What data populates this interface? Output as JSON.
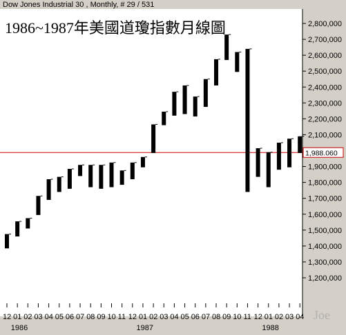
{
  "header": {
    "text": "Dow Jones Industrial 30 , Monthly, # 29 / 531"
  },
  "signature": "Joe",
  "colors": {
    "plot_bg": "#ffffff",
    "frame_bg": "#d4d0c8",
    "bar": "#000000",
    "current_line": "#cc0000"
  },
  "chart_data": {
    "type": "candlestick",
    "title": "1986~1987年美國道瓊指數月線圖",
    "y_ticks": [
      "1,200,000",
      "1,300,000",
      "1,400,000",
      "1,500,000",
      "1,600,000",
      "1,700,000",
      "1,800,000",
      "1,900,000",
      "2,000,000",
      "2,100,000",
      "2,200,000",
      "2,300,000",
      "2,400,000",
      "2,500,000",
      "2,600,000",
      "2,700,000",
      "2,800,000"
    ],
    "ylim": [
      1160,
      2850
    ],
    "current_value": "1,988.060",
    "year_labels": [
      {
        "label": "1986",
        "at_index": 0
      },
      {
        "label": "1987",
        "at_index": 12
      },
      {
        "label": "1988",
        "at_index": 24
      }
    ],
    "candles": [
      {
        "month": "12",
        "open": 1385,
        "close": 1475
      },
      {
        "month": "01",
        "open": 1460,
        "close": 1555
      },
      {
        "month": "02",
        "open": 1510,
        "close": 1575
      },
      {
        "month": "03",
        "open": 1595,
        "close": 1715
      },
      {
        "month": "04",
        "open": 1690,
        "close": 1820
      },
      {
        "month": "05",
        "open": 1740,
        "close": 1835
      },
      {
        "month": "06",
        "open": 1760,
        "close": 1885
      },
      {
        "month": "07",
        "open": 1840,
        "close": 1910
      },
      {
        "month": "08",
        "open": 1770,
        "close": 1910
      },
      {
        "month": "09",
        "open": 1760,
        "close": 1910
      },
      {
        "month": "10",
        "open": 1770,
        "close": 1925
      },
      {
        "month": "11",
        "open": 1785,
        "close": 1875
      },
      {
        "month": "12",
        "open": 1820,
        "close": 1925
      },
      {
        "month": "01",
        "open": 1895,
        "close": 1960
      },
      {
        "month": "02",
        "open": 1985,
        "close": 2165
      },
      {
        "month": "03",
        "open": 2160,
        "close": 2245
      },
      {
        "month": "04",
        "open": 2220,
        "close": 2370
      },
      {
        "month": "05",
        "open": 2230,
        "close": 2410
      },
      {
        "month": "06",
        "open": 2215,
        "close": 2340
      },
      {
        "month": "07",
        "open": 2275,
        "close": 2450
      },
      {
        "month": "08",
        "open": 2410,
        "close": 2575
      },
      {
        "month": "09",
        "open": 2570,
        "close": 2730
      },
      {
        "month": "10",
        "open": 2495,
        "close": 2620
      },
      {
        "month": "11",
        "open": 1740,
        "close": 2640
      },
      {
        "month": "12",
        "open": 1835,
        "close": 2015
      },
      {
        "month": "01",
        "open": 1770,
        "close": 1990
      },
      {
        "month": "02",
        "open": 1880,
        "close": 2050
      },
      {
        "month": "03",
        "open": 1895,
        "close": 2075
      },
      {
        "month": "04",
        "open": 1985,
        "close": 2090
      }
    ]
  }
}
